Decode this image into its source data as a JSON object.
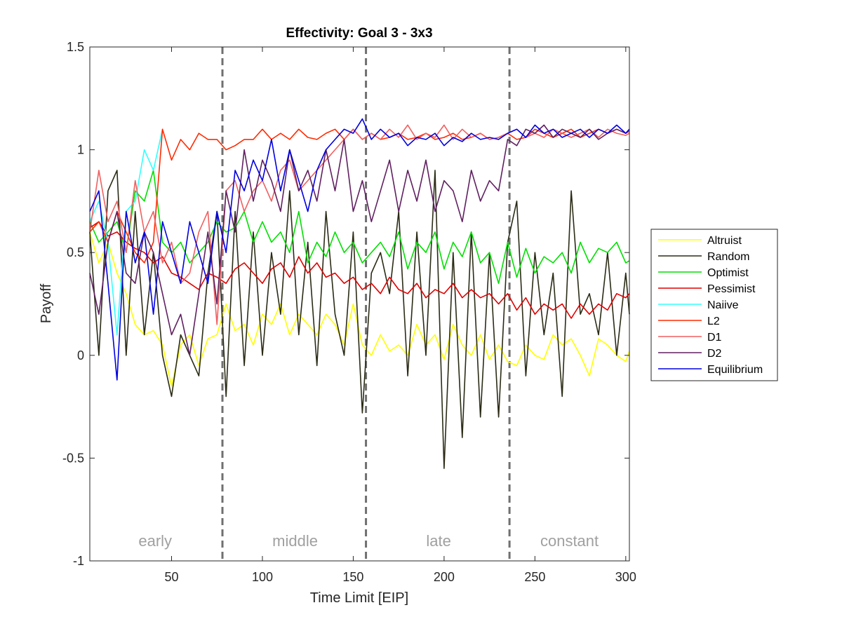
{
  "chart_data": {
    "type": "line",
    "title": "Effectivity: Goal 3 - 3x3",
    "xlabel": "Time Limit [EIP]",
    "ylabel": "Payoff",
    "xlim": [
      5,
      302
    ],
    "ylim": [
      -1,
      1.5
    ],
    "xticks": [
      50,
      100,
      150,
      200,
      250,
      300
    ],
    "yticks": [
      -1,
      -0.5,
      0,
      0.5,
      1,
      1.5
    ],
    "ytick_labels": [
      "-1",
      "-0.5",
      "0",
      "0.5",
      "1",
      "1.5"
    ],
    "legend_position": "outside-right",
    "grid": false,
    "phase_boundaries": [
      78,
      157,
      236
    ],
    "phases": [
      {
        "label": "early",
        "x": 41
      },
      {
        "label": "middle",
        "x": 118
      },
      {
        "label": "late",
        "x": 197
      },
      {
        "label": "constant",
        "x": 269
      }
    ],
    "series": [
      {
        "name": "Altruist",
        "color": "#ffff00",
        "x": [
          5,
          10,
          15,
          20,
          25,
          30,
          35,
          40,
          45,
          50,
          55,
          60,
          65,
          70,
          75,
          80,
          85,
          90,
          95,
          100,
          105,
          110,
          115,
          120,
          125,
          130,
          135,
          140,
          145,
          150,
          155,
          160,
          165,
          170,
          175,
          180,
          185,
          190,
          195,
          200,
          205,
          210,
          215,
          220,
          225,
          230,
          235,
          240,
          245,
          250,
          255,
          260,
          265,
          270,
          275,
          280,
          285,
          290,
          295,
          300,
          302
        ],
        "y": [
          0.6,
          0.45,
          0.55,
          0.4,
          0.3,
          0.15,
          0.1,
          0.12,
          0.05,
          -0.15,
          0.05,
          0.1,
          -0.05,
          0.08,
          0.1,
          0.25,
          0.12,
          0.15,
          0.05,
          0.2,
          0.15,
          0.25,
          0.1,
          0.2,
          0.15,
          0.1,
          0.2,
          0.15,
          0.05,
          0.25,
          0.05,
          0.0,
          0.1,
          0.02,
          0.05,
          0.0,
          0.15,
          0.05,
          0.1,
          -0.02,
          0.15,
          0.05,
          0.0,
          0.1,
          -0.02,
          0.05,
          -0.03,
          -0.05,
          0.05,
          0.0,
          -0.02,
          0.1,
          0.05,
          0.08,
          0.0,
          -0.1,
          0.08,
          0.05,
          0.0,
          -0.03,
          0.02
        ]
      },
      {
        "name": "Random",
        "color": "#2b2b16",
        "x": [
          5,
          10,
          15,
          20,
          25,
          30,
          35,
          40,
          45,
          50,
          55,
          60,
          65,
          70,
          75,
          80,
          85,
          90,
          95,
          100,
          105,
          110,
          115,
          120,
          125,
          130,
          135,
          140,
          145,
          150,
          155,
          160,
          165,
          170,
          175,
          180,
          185,
          190,
          195,
          200,
          205,
          210,
          215,
          220,
          225,
          230,
          235,
          240,
          245,
          250,
          255,
          260,
          265,
          270,
          275,
          280,
          285,
          290,
          295,
          300,
          302
        ],
        "y": [
          0.6,
          0.0,
          0.8,
          0.9,
          0.0,
          0.7,
          0.1,
          0.5,
          0.0,
          -0.2,
          0.1,
          0.0,
          -0.1,
          0.4,
          0.7,
          -0.2,
          0.7,
          -0.05,
          0.6,
          0.0,
          0.5,
          0.2,
          0.8,
          0.1,
          0.55,
          -0.05,
          0.7,
          0.2,
          0.0,
          0.6,
          -0.28,
          0.4,
          0.5,
          0.3,
          0.7,
          -0.1,
          0.6,
          0.0,
          0.9,
          -0.55,
          0.5,
          -0.4,
          0.6,
          -0.3,
          0.5,
          -0.3,
          0.55,
          0.75,
          -0.1,
          0.5,
          0.1,
          0.4,
          -0.2,
          0.8,
          0.2,
          0.3,
          0.1,
          0.5,
          0.0,
          0.4,
          0.2
        ]
      },
      {
        "name": "Optimist",
        "color": "#00e000",
        "x": [
          5,
          10,
          15,
          20,
          25,
          30,
          35,
          40,
          45,
          50,
          55,
          60,
          65,
          70,
          75,
          80,
          85,
          90,
          95,
          100,
          105,
          110,
          115,
          120,
          125,
          130,
          135,
          140,
          145,
          150,
          155,
          160,
          165,
          170,
          175,
          180,
          185,
          190,
          195,
          200,
          205,
          210,
          215,
          220,
          225,
          230,
          235,
          240,
          245,
          250,
          255,
          260,
          265,
          270,
          275,
          280,
          285,
          290,
          295,
          300,
          302
        ],
        "y": [
          0.65,
          0.55,
          0.6,
          0.65,
          0.5,
          0.8,
          0.75,
          0.9,
          0.55,
          0.5,
          0.55,
          0.45,
          0.5,
          0.55,
          0.65,
          0.6,
          0.62,
          0.7,
          0.55,
          0.65,
          0.55,
          0.6,
          0.5,
          0.7,
          0.45,
          0.55,
          0.48,
          0.6,
          0.5,
          0.55,
          0.45,
          0.5,
          0.55,
          0.48,
          0.6,
          0.42,
          0.55,
          0.5,
          0.6,
          0.42,
          0.55,
          0.48,
          0.6,
          0.45,
          0.5,
          0.35,
          0.55,
          0.38,
          0.52,
          0.4,
          0.48,
          0.45,
          0.5,
          0.4,
          0.55,
          0.45,
          0.52,
          0.5,
          0.55,
          0.45,
          0.46
        ]
      },
      {
        "name": "Pessimist",
        "color": "#e00000",
        "x": [
          5,
          10,
          15,
          20,
          25,
          30,
          35,
          40,
          45,
          50,
          55,
          60,
          65,
          70,
          75,
          80,
          85,
          90,
          95,
          100,
          105,
          110,
          115,
          120,
          125,
          130,
          135,
          140,
          145,
          150,
          155,
          160,
          165,
          170,
          175,
          180,
          185,
          190,
          195,
          200,
          205,
          210,
          215,
          220,
          225,
          230,
          235,
          240,
          245,
          250,
          255,
          260,
          265,
          270,
          275,
          280,
          285,
          290,
          295,
          300,
          302
        ],
        "y": [
          0.62,
          0.65,
          0.58,
          0.6,
          0.55,
          0.52,
          0.5,
          0.45,
          0.48,
          0.4,
          0.38,
          0.35,
          0.32,
          0.4,
          0.38,
          0.35,
          0.42,
          0.45,
          0.4,
          0.35,
          0.42,
          0.45,
          0.38,
          0.48,
          0.4,
          0.45,
          0.38,
          0.4,
          0.35,
          0.38,
          0.32,
          0.35,
          0.3,
          0.38,
          0.32,
          0.3,
          0.35,
          0.28,
          0.32,
          0.3,
          0.35,
          0.28,
          0.32,
          0.28,
          0.3,
          0.25,
          0.3,
          0.22,
          0.28,
          0.2,
          0.25,
          0.22,
          0.25,
          0.18,
          0.25,
          0.2,
          0.25,
          0.22,
          0.3,
          0.28,
          0.3
        ]
      },
      {
        "name": "Naiive",
        "color": "#33ffff",
        "x": [
          5,
          10,
          15,
          20,
          25,
          30,
          35,
          40,
          45
        ],
        "y": [
          0.65,
          0.75,
          0.55,
          0.1,
          0.7,
          0.75,
          1.0,
          0.9,
          1.1
        ]
      },
      {
        "name": "L2",
        "color": "#ff2a00",
        "x": [
          5,
          10,
          15,
          20,
          25,
          30,
          35,
          40,
          45,
          50,
          55,
          60,
          65,
          70,
          75,
          80,
          85,
          90,
          95,
          100,
          105,
          110,
          115,
          120,
          125,
          130,
          135,
          140,
          145,
          150,
          155,
          160,
          165,
          170,
          175,
          180,
          185,
          190,
          195,
          200,
          205,
          210,
          215,
          220,
          225,
          230,
          235,
          240,
          245,
          250,
          255,
          260,
          265,
          270,
          275,
          280,
          285,
          290,
          295,
          300,
          302
        ],
        "y": [
          0.6,
          0.65,
          0.55,
          0.7,
          0.6,
          0.5,
          0.45,
          0.55,
          1.1,
          0.95,
          1.05,
          1.0,
          1.08,
          1.05,
          1.05,
          1.0,
          1.02,
          1.05,
          1.05,
          1.1,
          1.05,
          1.08,
          1.05,
          1.1,
          1.06,
          1.05,
          1.08,
          1.1,
          1.05,
          1.1,
          1.05,
          1.08,
          1.05,
          1.06,
          1.08,
          1.05,
          1.06,
          1.08,
          1.05,
          1.06,
          1.08,
          1.05,
          1.06,
          1.08,
          1.05,
          1.06,
          1.08,
          1.05,
          1.06,
          1.1,
          1.08,
          1.06,
          1.08,
          1.1,
          1.06,
          1.08,
          1.1,
          1.08,
          1.1,
          1.08,
          1.09
        ]
      },
      {
        "name": "D1",
        "color": "#f06060",
        "x": [
          5,
          10,
          15,
          20,
          25,
          30,
          35,
          40,
          45,
          50,
          55,
          60,
          65,
          70,
          75,
          80,
          85,
          90,
          95,
          100,
          105,
          110,
          115,
          120,
          125,
          130,
          135,
          140,
          145,
          150,
          155,
          160,
          165,
          170,
          175,
          180,
          185,
          190,
          195,
          200,
          205,
          210,
          215,
          220,
          225,
          230,
          235,
          240,
          245,
          250,
          255,
          260,
          265,
          270,
          275,
          280,
          285,
          290,
          295,
          300,
          302
        ],
        "y": [
          0.6,
          0.9,
          0.65,
          0.75,
          0.5,
          0.85,
          0.6,
          0.7,
          0.45,
          0.55,
          0.35,
          0.4,
          0.6,
          0.7,
          0.15,
          0.8,
          0.85,
          0.7,
          0.8,
          0.85,
          0.75,
          0.9,
          0.95,
          0.8,
          0.85,
          0.9,
          0.95,
          1.0,
          1.05,
          1.1,
          1.05,
          1.08,
          1.05,
          1.1,
          1.06,
          1.12,
          1.05,
          1.08,
          1.06,
          1.12,
          1.05,
          1.1,
          1.06,
          1.08,
          1.05,
          1.06,
          1.08,
          1.1,
          1.06,
          1.08,
          1.06,
          1.1,
          1.08,
          1.06,
          1.08,
          1.1,
          1.06,
          1.1,
          1.08,
          1.07,
          1.08
        ]
      },
      {
        "name": "D2",
        "color": "#602060",
        "x": [
          5,
          10,
          15,
          20,
          25,
          30,
          35,
          40,
          45,
          50,
          55,
          60,
          65,
          70,
          75,
          80,
          85,
          90,
          95,
          100,
          105,
          110,
          115,
          120,
          125,
          130,
          135,
          140,
          145,
          150,
          155,
          160,
          165,
          170,
          175,
          180,
          185,
          190,
          195,
          200,
          205,
          210,
          215,
          220,
          225,
          230,
          235,
          240,
          245,
          250,
          255,
          260,
          265,
          270,
          275,
          280,
          285,
          290,
          295,
          300,
          302
        ],
        "y": [
          0.4,
          0.2,
          0.55,
          0.7,
          0.4,
          0.35,
          0.6,
          0.5,
          0.3,
          0.1,
          0.2,
          0.0,
          0.3,
          0.6,
          0.25,
          0.8,
          0.6,
          1.0,
          0.75,
          0.95,
          0.85,
          0.7,
          1.0,
          0.8,
          0.9,
          0.75,
          1.0,
          0.8,
          1.05,
          0.7,
          0.85,
          0.65,
          0.8,
          0.95,
          0.7,
          0.9,
          0.75,
          0.95,
          0.7,
          0.85,
          0.8,
          0.65,
          0.9,
          0.75,
          0.85,
          0.8,
          1.05,
          1.02,
          1.1,
          1.08,
          1.12,
          1.06,
          1.1,
          1.08,
          1.06,
          1.1,
          1.05,
          1.08,
          1.1,
          1.08,
          1.1
        ]
      },
      {
        "name": "Equilibrium",
        "color": "#0000e0",
        "x": [
          5,
          10,
          15,
          20,
          25,
          30,
          35,
          40,
          45,
          50,
          55,
          60,
          65,
          70,
          75,
          80,
          85,
          90,
          95,
          100,
          105,
          110,
          115,
          120,
          125,
          130,
          135,
          140,
          145,
          150,
          155,
          160,
          165,
          170,
          175,
          180,
          185,
          190,
          195,
          200,
          205,
          210,
          215,
          220,
          225,
          230,
          235,
          240,
          245,
          250,
          255,
          260,
          265,
          270,
          275,
          280,
          285,
          290,
          295,
          300,
          302
        ],
        "y": [
          0.7,
          0.8,
          0.35,
          -0.12,
          0.7,
          0.45,
          0.6,
          0.2,
          0.65,
          0.5,
          0.35,
          0.65,
          0.5,
          0.35,
          0.7,
          0.5,
          0.9,
          0.8,
          0.95,
          0.85,
          1.05,
          0.8,
          1.0,
          0.85,
          0.7,
          0.9,
          1.0,
          1.05,
          1.1,
          1.08,
          1.15,
          1.05,
          1.1,
          1.06,
          1.08,
          1.02,
          1.06,
          1.05,
          1.08,
          1.02,
          1.06,
          1.04,
          1.08,
          1.05,
          1.06,
          1.05,
          1.08,
          1.1,
          1.06,
          1.12,
          1.08,
          1.1,
          1.06,
          1.08,
          1.1,
          1.06,
          1.1,
          1.08,
          1.12,
          1.08,
          1.1
        ]
      }
    ]
  }
}
